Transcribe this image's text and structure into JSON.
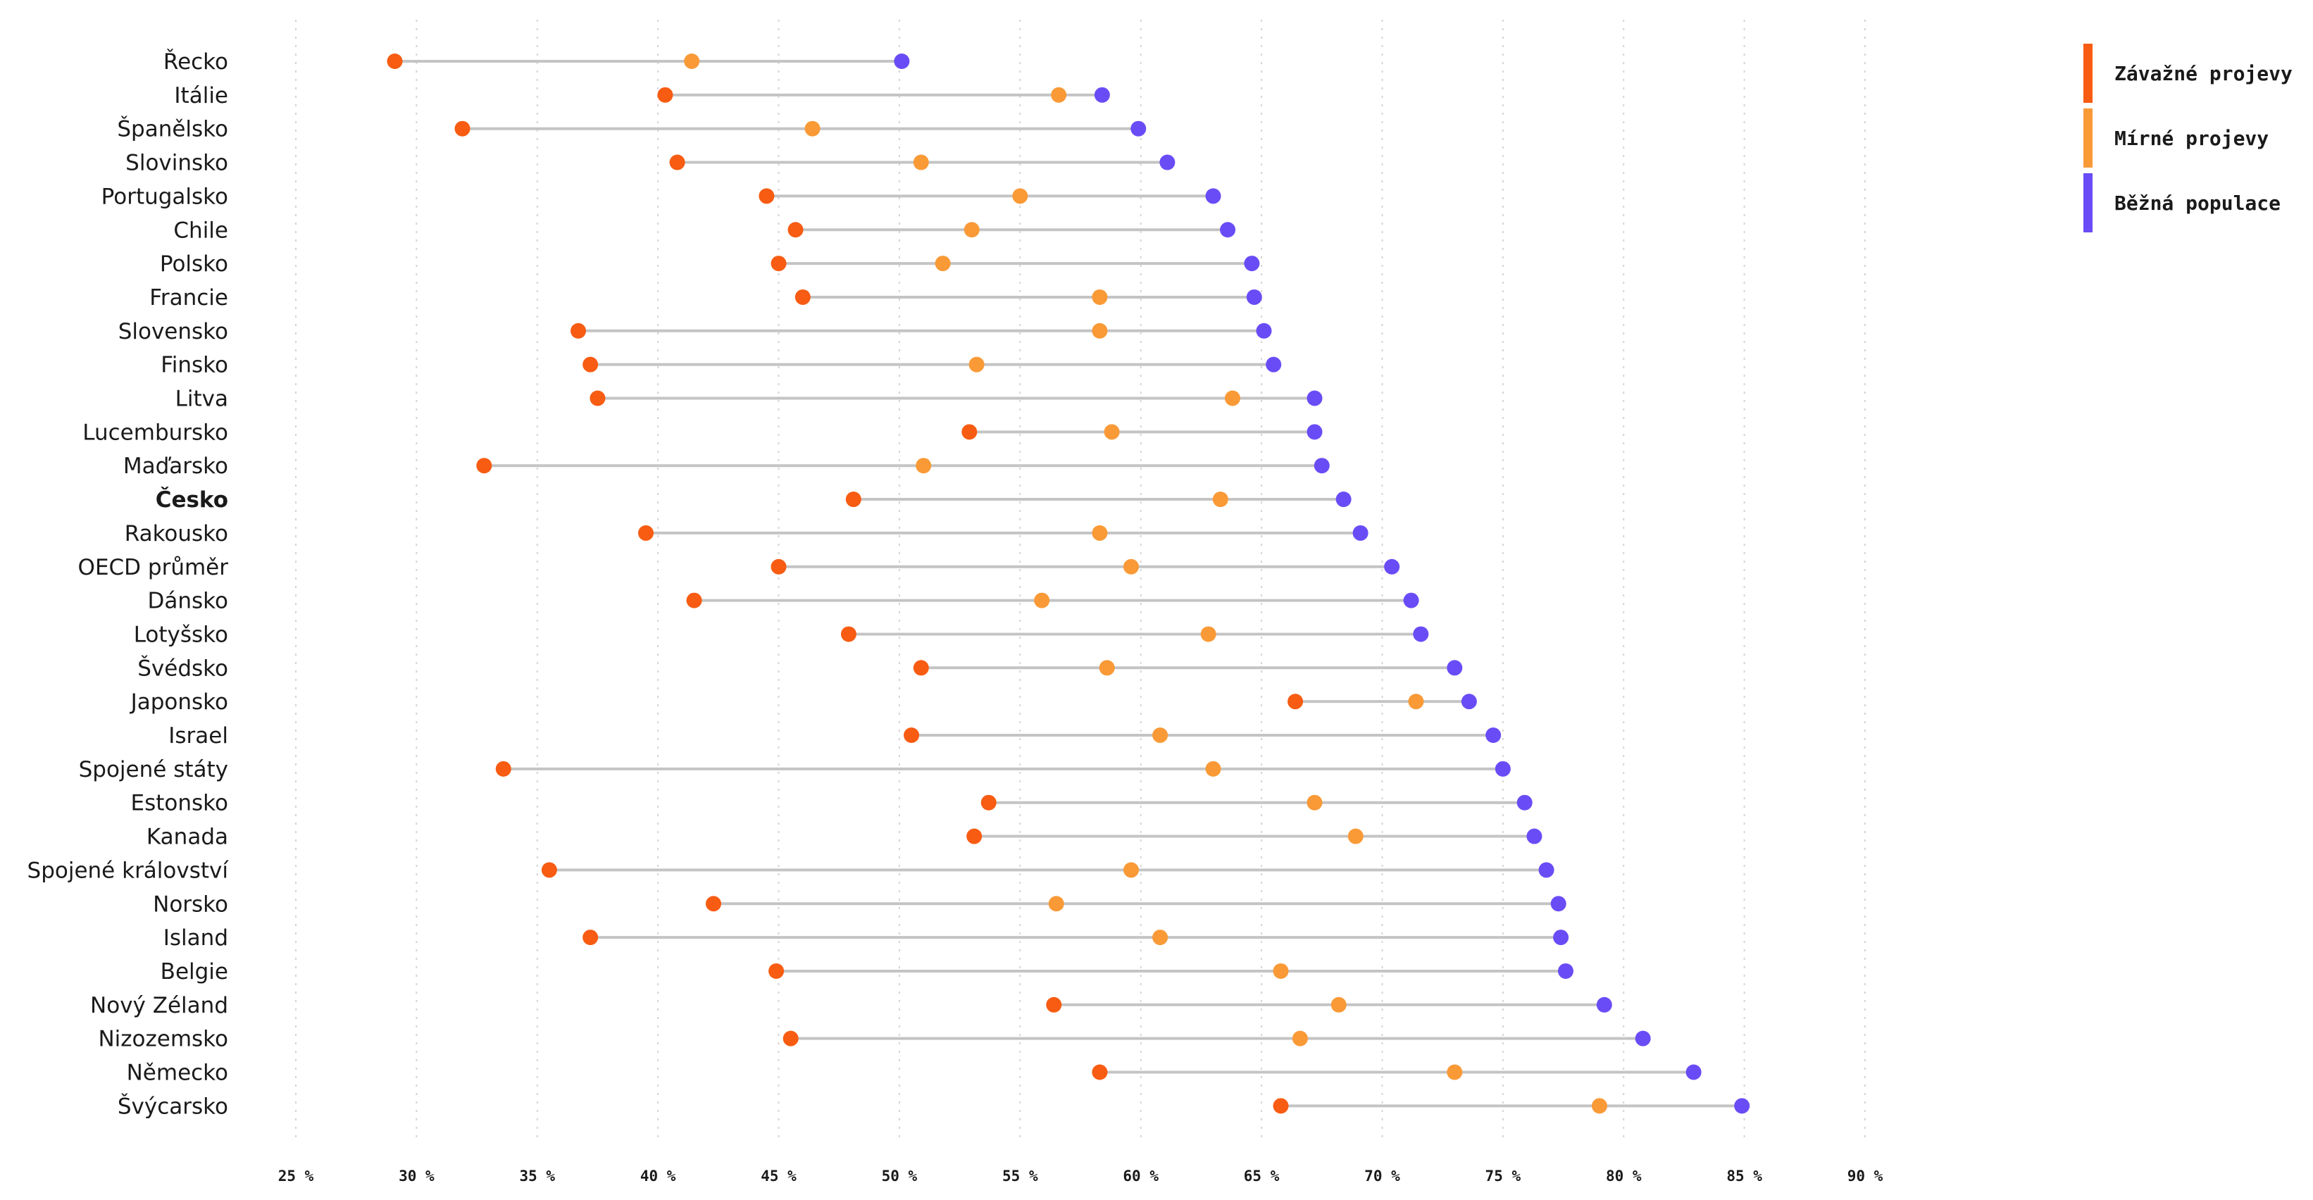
{
  "chart_data": {
    "type": "dumbbell",
    "xlim": [
      25,
      90
    ],
    "x_ticks": [
      25,
      30,
      35,
      40,
      45,
      50,
      55,
      60,
      65,
      70,
      75,
      80,
      85,
      90
    ],
    "x_tick_suffix": " %",
    "grid": "vertical-dotted",
    "legend_position": "top-right",
    "series": [
      {
        "key": "severe",
        "name": "Závažné projevy",
        "color": "#f75c12"
      },
      {
        "key": "mild",
        "name": "Mírné projevy",
        "color": "#f99a37"
      },
      {
        "key": "general",
        "name": "Běžná populace",
        "color": "#6a4cf6"
      }
    ],
    "highlight": "Česko",
    "rows": [
      {
        "country": "Řecko",
        "severe": 29.1,
        "mild": 41.4,
        "general": 50.1
      },
      {
        "country": "Itálie",
        "severe": 40.3,
        "mild": 56.6,
        "general": 58.4
      },
      {
        "country": "Španělsko",
        "severe": 31.9,
        "mild": 46.4,
        "general": 59.9
      },
      {
        "country": "Slovinsko",
        "severe": 40.8,
        "mild": 50.9,
        "general": 61.1
      },
      {
        "country": "Portugalsko",
        "severe": 44.5,
        "mild": 55.0,
        "general": 63.0
      },
      {
        "country": "Chile",
        "severe": 45.7,
        "mild": 53.0,
        "general": 63.6
      },
      {
        "country": "Polsko",
        "severe": 45.0,
        "mild": 51.8,
        "general": 64.6
      },
      {
        "country": "Francie",
        "severe": 46.0,
        "mild": 58.3,
        "general": 64.7
      },
      {
        "country": "Slovensko",
        "severe": 36.7,
        "mild": 58.3,
        "general": 65.1
      },
      {
        "country": "Finsko",
        "severe": 37.2,
        "mild": 53.2,
        "general": 65.5
      },
      {
        "country": "Litva",
        "severe": 37.5,
        "mild": 63.8,
        "general": 67.2
      },
      {
        "country": "Lucembursko",
        "severe": 52.9,
        "mild": 58.8,
        "general": 67.2
      },
      {
        "country": "Maďarsko",
        "severe": 32.8,
        "mild": 51.0,
        "general": 67.5
      },
      {
        "country": "Česko",
        "severe": 48.1,
        "mild": 63.3,
        "general": 68.4
      },
      {
        "country": "Rakousko",
        "severe": 39.5,
        "mild": 58.3,
        "general": 69.1
      },
      {
        "country": "OECD průměr",
        "severe": 45.0,
        "mild": 59.6,
        "general": 70.4
      },
      {
        "country": "Dánsko",
        "severe": 41.5,
        "mild": 55.9,
        "general": 71.2
      },
      {
        "country": "Lotyšsko",
        "severe": 47.9,
        "mild": 62.8,
        "general": 71.6
      },
      {
        "country": "Švédsko",
        "severe": 50.9,
        "mild": 58.6,
        "general": 73.0
      },
      {
        "country": "Japonsko",
        "severe": 66.4,
        "mild": 71.4,
        "general": 73.6
      },
      {
        "country": "Israel",
        "severe": 50.5,
        "mild": 60.8,
        "general": 74.6
      },
      {
        "country": "Spojené státy",
        "severe": 33.6,
        "mild": 63.0,
        "general": 75.0
      },
      {
        "country": "Estonsko",
        "severe": 53.7,
        "mild": 67.2,
        "general": 75.9
      },
      {
        "country": "Kanada",
        "severe": 53.1,
        "mild": 68.9,
        "general": 76.3
      },
      {
        "country": "Spojené království",
        "severe": 35.5,
        "mild": 59.6,
        "general": 76.8
      },
      {
        "country": "Norsko",
        "severe": 42.3,
        "mild": 56.5,
        "general": 77.3
      },
      {
        "country": "Island",
        "severe": 37.2,
        "mild": 60.8,
        "general": 77.4
      },
      {
        "country": "Belgie",
        "severe": 44.9,
        "mild": 65.8,
        "general": 77.6
      },
      {
        "country": "Nový Zéland",
        "severe": 56.4,
        "mild": 68.2,
        "general": 79.2
      },
      {
        "country": "Nizozemsko",
        "severe": 45.5,
        "mild": 66.6,
        "general": 80.8
      },
      {
        "country": "Německo",
        "severe": 58.3,
        "mild": 73.0,
        "general": 82.9
      },
      {
        "country": "Švýcarsko",
        "severe": 65.8,
        "mild": 79.0,
        "general": 84.9
      }
    ]
  }
}
